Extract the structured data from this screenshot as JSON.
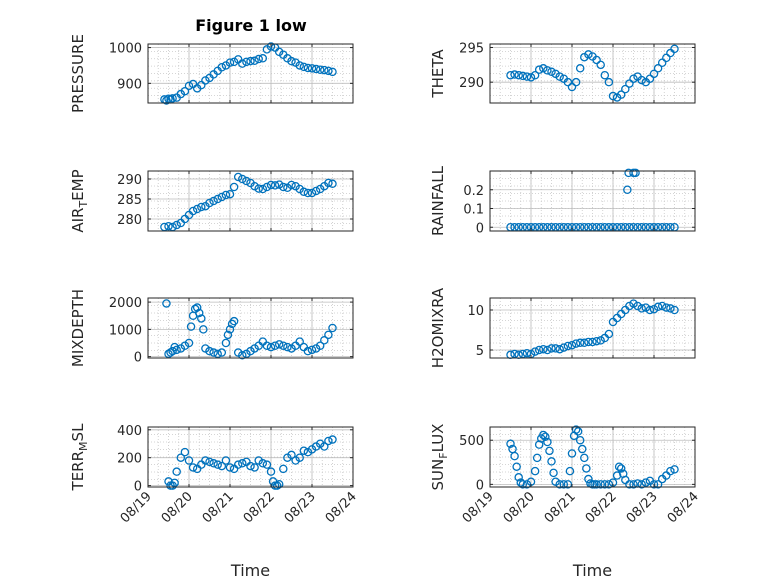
{
  "figure": {
    "title": "Figure 1 low"
  },
  "colors": {
    "marker": "#0072BD",
    "axis": "#262626",
    "grid": "#c8c8c8",
    "background": "#ffffff"
  },
  "chart_data": [
    {
      "type": "scatter",
      "ylabel": "PRESSURE",
      "ylim": [
        845,
        1010
      ],
      "yticks": [
        900,
        1000
      ],
      "xlim": [
        0,
        5
      ],
      "xticks": [
        "08/19",
        "08/20",
        "08/21",
        "08/22",
        "08/23",
        "08/24"
      ],
      "show_xticks": false,
      "xlabel": "",
      "x": [
        0.4,
        0.45,
        0.5,
        0.55,
        0.6,
        0.7,
        0.8,
        0.9,
        1.0,
        1.1,
        1.2,
        1.3,
        1.4,
        1.5,
        1.6,
        1.7,
        1.8,
        1.9,
        2.0,
        2.1,
        2.2,
        2.3,
        2.4,
        2.5,
        2.6,
        2.7,
        2.8,
        2.9,
        3.0,
        3.1,
        3.2,
        3.3,
        3.4,
        3.5,
        3.6,
        3.7,
        3.8,
        3.9,
        4.0,
        4.1,
        4.2,
        4.3,
        4.4,
        4.5
      ],
      "y": [
        855,
        852,
        857,
        855,
        858,
        860,
        870,
        878,
        893,
        898,
        886,
        895,
        908,
        915,
        925,
        935,
        945,
        950,
        958,
        960,
        967,
        955,
        960,
        962,
        963,
        968,
        970,
        995,
        1003,
        1000,
        988,
        980,
        970,
        962,
        958,
        950,
        946,
        943,
        942,
        940,
        938,
        937,
        935,
        932
      ]
    },
    {
      "type": "scatter",
      "ylabel": "THETA",
      "ylim": [
        287,
        295.5
      ],
      "yticks": [
        290,
        295
      ],
      "xlim": [
        0,
        5
      ],
      "xticks": [
        "08/19",
        "08/20",
        "08/21",
        "08/22",
        "08/23",
        "08/24"
      ],
      "show_xticks": false,
      "xlabel": "",
      "x": [
        0.5,
        0.6,
        0.7,
        0.8,
        0.9,
        1.0,
        1.1,
        1.2,
        1.3,
        1.4,
        1.5,
        1.6,
        1.7,
        1.8,
        1.9,
        2.0,
        2.1,
        2.2,
        2.3,
        2.4,
        2.5,
        2.6,
        2.7,
        2.8,
        2.9,
        3.0,
        3.1,
        3.2,
        3.3,
        3.4,
        3.5,
        3.6,
        3.7,
        3.8,
        3.9,
        4.0,
        4.1,
        4.2,
        4.3,
        4.4,
        4.5
      ],
      "y": [
        291.0,
        291.1,
        291.0,
        290.9,
        290.8,
        290.7,
        291.0,
        291.8,
        292.0,
        291.7,
        291.5,
        291.2,
        290.8,
        290.5,
        290.0,
        289.3,
        290.0,
        292.0,
        293.6,
        294.0,
        293.7,
        293.2,
        292.5,
        291.0,
        290.0,
        288.0,
        287.8,
        288.2,
        289.0,
        289.8,
        290.5,
        290.8,
        290.3,
        290.0,
        290.5,
        291.2,
        292.0,
        292.8,
        293.5,
        294.2,
        294.8
      ]
    },
    {
      "type": "scatter",
      "ylabel": "AIR_T_EMP",
      "ylabel_main": "AIR",
      "ylabel_sub": "T",
      "ylabel_rest": "EMP",
      "ylim": [
        277,
        292
      ],
      "yticks": [
        280,
        285,
        290
      ],
      "xlim": [
        0,
        5
      ],
      "xticks": [
        "08/19",
        "08/20",
        "08/21",
        "08/22",
        "08/23",
        "08/24"
      ],
      "show_xticks": false,
      "xlabel": "",
      "x": [
        0.4,
        0.5,
        0.6,
        0.7,
        0.8,
        0.9,
        1.0,
        1.1,
        1.2,
        1.3,
        1.4,
        1.5,
        1.6,
        1.7,
        1.8,
        1.9,
        2.0,
        2.1,
        2.2,
        2.3,
        2.4,
        2.5,
        2.6,
        2.7,
        2.8,
        2.9,
        3.0,
        3.1,
        3.2,
        3.3,
        3.4,
        3.5,
        3.6,
        3.7,
        3.8,
        3.9,
        4.0,
        4.1,
        4.2,
        4.3,
        4.4,
        4.5
      ],
      "y": [
        278.0,
        278.2,
        278.0,
        278.5,
        279.0,
        280.0,
        281.0,
        282.0,
        282.5,
        283.0,
        283.2,
        284.0,
        284.5,
        285.0,
        285.5,
        286.0,
        286.2,
        288.0,
        290.5,
        290.0,
        289.5,
        289.0,
        288.2,
        287.6,
        287.5,
        288.0,
        288.5,
        288.4,
        288.6,
        288.0,
        287.8,
        288.5,
        288.2,
        287.5,
        286.8,
        286.5,
        286.5,
        287.0,
        287.5,
        288.2,
        289.0,
        288.8
      ]
    },
    {
      "type": "scatter",
      "ylabel": "RAINFALL",
      "ylim": [
        -0.02,
        0.3
      ],
      "yticks": [
        0,
        0.1,
        0.2
      ],
      "xlim": [
        0,
        5
      ],
      "xticks": [
        "08/19",
        "08/20",
        "08/21",
        "08/22",
        "08/23",
        "08/24"
      ],
      "show_xticks": false,
      "xlabel": "",
      "x": [
        0.5,
        0.6,
        0.7,
        0.8,
        0.9,
        1.0,
        1.1,
        1.2,
        1.3,
        1.4,
        1.5,
        1.6,
        1.7,
        1.8,
        1.9,
        2.0,
        2.1,
        2.2,
        2.3,
        2.4,
        2.5,
        2.6,
        2.7,
        2.8,
        2.9,
        3.0,
        3.1,
        3.2,
        3.3,
        3.4,
        3.5,
        3.6,
        3.7,
        3.8,
        3.9,
        4.0,
        4.1,
        4.2,
        4.3,
        4.4,
        4.5,
        3.35,
        3.38,
        3.5,
        3.55
      ],
      "y": [
        0,
        0,
        0,
        0,
        0,
        0,
        0,
        0,
        0,
        0,
        0,
        0,
        0,
        0,
        0,
        0,
        0,
        0,
        0,
        0,
        0,
        0,
        0,
        0,
        0,
        0,
        0,
        0,
        0,
        0,
        0,
        0,
        0,
        0,
        0,
        0,
        0,
        0,
        0,
        0,
        0,
        0.2,
        0.29,
        0.29,
        0.29
      ]
    },
    {
      "type": "scatter",
      "ylabel": "MIXDEPTH",
      "ylim": [
        -50,
        2150
      ],
      "yticks": [
        0,
        1000,
        2000
      ],
      "xlim": [
        0,
        5
      ],
      "xticks": [
        "08/19",
        "08/20",
        "08/21",
        "08/22",
        "08/23",
        "08/24"
      ],
      "show_xticks": false,
      "xlabel": "",
      "x": [
        0.45,
        0.5,
        0.55,
        0.6,
        0.65,
        0.7,
        0.8,
        0.9,
        1.0,
        1.05,
        1.1,
        1.15,
        1.2,
        1.25,
        1.3,
        1.35,
        1.4,
        1.5,
        1.6,
        1.7,
        1.8,
        1.9,
        1.95,
        2.0,
        2.05,
        2.1,
        2.2,
        2.3,
        2.4,
        2.5,
        2.6,
        2.7,
        2.8,
        2.9,
        3.0,
        3.1,
        3.2,
        3.3,
        3.4,
        3.5,
        3.6,
        3.7,
        3.8,
        3.9,
        4.0,
        4.1,
        4.2,
        4.3,
        4.4,
        4.5
      ],
      "y": [
        1950,
        100,
        150,
        200,
        350,
        250,
        300,
        400,
        500,
        1100,
        1500,
        1750,
        1800,
        1600,
        1400,
        1000,
        300,
        200,
        150,
        100,
        150,
        500,
        800,
        1000,
        1200,
        1300,
        150,
        50,
        100,
        200,
        300,
        400,
        550,
        400,
        350,
        400,
        450,
        400,
        350,
        300,
        400,
        550,
        350,
        200,
        250,
        300,
        400,
        600,
        800,
        1050
      ]
    },
    {
      "type": "scatter",
      "ylabel": "H2OMIXRA",
      "ylim": [
        4,
        11.5
      ],
      "yticks": [
        5,
        10
      ],
      "xlim": [
        0,
        5
      ],
      "xticks": [
        "08/19",
        "08/20",
        "08/21",
        "08/22",
        "08/23",
        "08/24"
      ],
      "show_xticks": false,
      "xlabel": "",
      "x": [
        0.5,
        0.6,
        0.7,
        0.8,
        0.9,
        1.0,
        1.1,
        1.2,
        1.3,
        1.4,
        1.5,
        1.6,
        1.7,
        1.8,
        1.9,
        2.0,
        2.1,
        2.2,
        2.3,
        2.4,
        2.5,
        2.6,
        2.7,
        2.8,
        2.9,
        3.0,
        3.1,
        3.2,
        3.3,
        3.4,
        3.5,
        3.6,
        3.7,
        3.8,
        3.9,
        4.0,
        4.1,
        4.2,
        4.3,
        4.4,
        4.5
      ],
      "y": [
        4.4,
        4.5,
        4.4,
        4.5,
        4.6,
        4.5,
        4.8,
        5.0,
        5.1,
        5.0,
        5.2,
        5.2,
        5.1,
        5.3,
        5.5,
        5.6,
        5.8,
        5.9,
        5.9,
        6.0,
        6.0,
        6.1,
        6.2,
        6.5,
        7.0,
        8.5,
        9.0,
        9.5,
        10.0,
        10.5,
        10.8,
        10.5,
        10.2,
        10.3,
        10.0,
        10.1,
        10.4,
        10.5,
        10.3,
        10.2,
        10.0
      ]
    },
    {
      "type": "scatter",
      "ylabel": "TERR_M_SL",
      "ylabel_main": "TERR",
      "ylabel_sub": "M",
      "ylabel_rest": "SL",
      "ylim": [
        -10,
        420
      ],
      "yticks": [
        0,
        200,
        400
      ],
      "xlim": [
        0,
        5
      ],
      "xticks": [
        "08/19",
        "08/20",
        "08/21",
        "08/22",
        "08/23",
        "08/24"
      ],
      "show_xticks": true,
      "xlabel": "Time",
      "x": [
        0.5,
        0.55,
        0.6,
        0.65,
        0.7,
        0.8,
        0.9,
        1.0,
        1.1,
        1.2,
        1.3,
        1.4,
        1.5,
        1.6,
        1.7,
        1.8,
        1.9,
        2.0,
        2.1,
        2.2,
        2.3,
        2.4,
        2.5,
        2.6,
        2.7,
        2.8,
        2.9,
        3.0,
        3.05,
        3.1,
        3.15,
        3.2,
        3.3,
        3.4,
        3.5,
        3.6,
        3.7,
        3.8,
        3.9,
        4.0,
        4.1,
        4.2,
        4.3,
        4.4,
        4.5
      ],
      "y": [
        30,
        0,
        0,
        20,
        100,
        200,
        240,
        180,
        130,
        120,
        150,
        180,
        170,
        160,
        150,
        140,
        180,
        130,
        120,
        150,
        160,
        170,
        140,
        130,
        180,
        160,
        150,
        100,
        30,
        0,
        0,
        10,
        120,
        200,
        220,
        180,
        200,
        250,
        240,
        260,
        280,
        300,
        280,
        320,
        330
      ]
    },
    {
      "type": "scatter",
      "ylabel": "SUN_F_LUX",
      "ylabel_main": "SUN",
      "ylabel_sub": "F",
      "ylabel_rest": "LUX",
      "ylim": [
        -30,
        650
      ],
      "yticks": [
        0,
        500
      ],
      "xlim": [
        0,
        5
      ],
      "xticks": [
        "08/19",
        "08/20",
        "08/21",
        "08/22",
        "08/23",
        "08/24"
      ],
      "show_xticks": true,
      "xlabel": "Time",
      "x": [
        0.5,
        0.55,
        0.6,
        0.65,
        0.7,
        0.75,
        0.8,
        0.9,
        1.0,
        1.1,
        1.15,
        1.2,
        1.25,
        1.3,
        1.35,
        1.4,
        1.45,
        1.5,
        1.55,
        1.6,
        1.7,
        1.8,
        1.9,
        1.95,
        2.0,
        2.05,
        2.1,
        2.15,
        2.2,
        2.25,
        2.3,
        2.35,
        2.4,
        2.45,
        2.5,
        2.55,
        2.6,
        2.7,
        2.8,
        2.9,
        3.0,
        3.1,
        3.15,
        3.2,
        3.25,
        3.3,
        3.4,
        3.5,
        3.6,
        3.7,
        3.8,
        3.9,
        4.0,
        4.1,
        4.2,
        4.3,
        4.4,
        4.5
      ],
      "y": [
        460,
        400,
        320,
        200,
        80,
        20,
        0,
        0,
        30,
        150,
        300,
        450,
        520,
        560,
        540,
        480,
        380,
        260,
        130,
        30,
        0,
        0,
        0,
        150,
        350,
        550,
        620,
        600,
        500,
        400,
        300,
        180,
        60,
        10,
        0,
        0,
        0,
        0,
        0,
        0,
        20,
        100,
        200,
        180,
        120,
        50,
        0,
        0,
        10,
        0,
        20,
        40,
        0,
        0,
        60,
        100,
        150,
        170
      ]
    }
  ]
}
